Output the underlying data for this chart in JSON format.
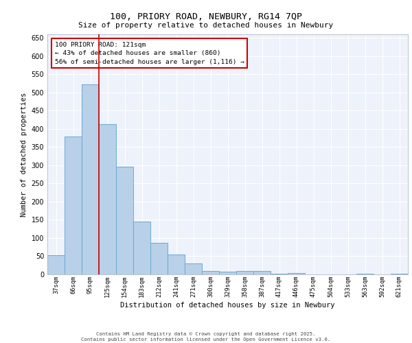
{
  "title1": "100, PRIORY ROAD, NEWBURY, RG14 7QP",
  "title2": "Size of property relative to detached houses in Newbury",
  "xlabel": "Distribution of detached houses by size in Newbury",
  "ylabel": "Number of detached properties",
  "categories": [
    "37sqm",
    "66sqm",
    "95sqm",
    "125sqm",
    "154sqm",
    "183sqm",
    "212sqm",
    "241sqm",
    "271sqm",
    "300sqm",
    "329sqm",
    "358sqm",
    "387sqm",
    "417sqm",
    "446sqm",
    "475sqm",
    "504sqm",
    "533sqm",
    "563sqm",
    "592sqm",
    "621sqm"
  ],
  "values": [
    52,
    379,
    522,
    413,
    297,
    146,
    87,
    55,
    30,
    9,
    7,
    10,
    10,
    2,
    3,
    0,
    0,
    0,
    2,
    0,
    1
  ],
  "bar_color": "#b8d0e8",
  "bar_edge_color": "#6aaad4",
  "annotation_text": "100 PRIORY ROAD: 121sqm\n← 43% of detached houses are smaller (860)\n56% of semi-detached houses are larger (1,116) →",
  "annotation_box_color": "#ffffff",
  "annotation_box_edge_color": "#cc0000",
  "vline_color": "#cc0000",
  "background_color": "#eef2fb",
  "grid_color": "#ffffff",
  "footer_text": "Contains HM Land Registry data © Crown copyright and database right 2025.\nContains public sector information licensed under the Open Government Licence v3.0.",
  "ylim": [
    0,
    660
  ],
  "yticks": [
    0,
    50,
    100,
    150,
    200,
    250,
    300,
    350,
    400,
    450,
    500,
    550,
    600,
    650
  ]
}
